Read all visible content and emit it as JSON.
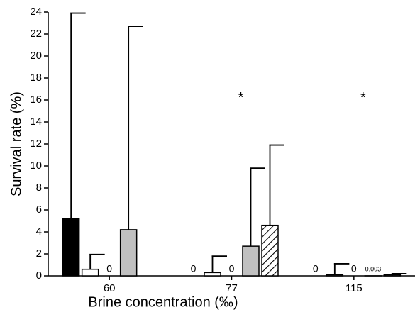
{
  "chart_data": {
    "type": "bar",
    "categories": [
      "60",
      "77",
      "115"
    ],
    "xlabel": "Brine concentration (‰)",
    "ylabel": "Survival rate (%)",
    "ylim": [
      0,
      24
    ],
    "yticks": [
      0,
      2,
      4,
      6,
      8,
      10,
      12,
      14,
      16,
      18,
      20,
      22,
      24
    ],
    "grid": false,
    "series": [
      {
        "color": "#000000",
        "values": [
          5.2,
          0,
          0
        ],
        "errors": [
          18.7,
          null,
          null
        ],
        "value_labels": [
          null,
          "0",
          "0"
        ]
      },
      {
        "color": "#ffffff",
        "values": [
          0.6,
          0.3,
          0.1
        ],
        "errors": [
          1.35,
          1.5,
          1.0
        ]
      },
      {
        "color": "#ffffff",
        "values": [
          0,
          0,
          0
        ],
        "value_labels": [
          "0",
          "0",
          "0"
        ]
      },
      {
        "color": "#c0c0c0",
        "values": [
          4.2,
          2.7,
          0.003
        ],
        "errors": [
          18.5,
          7.1,
          null
        ],
        "value_labels": [
          null,
          null,
          "0.003"
        ]
      },
      {
        "color": "#ffffff",
        "pattern": "hatch",
        "values": [
          null,
          4.6,
          0.1
        ],
        "errors": [
          null,
          7.3,
          0.1
        ]
      }
    ],
    "annotations": [
      {
        "text": "*",
        "category_index": 1,
        "y": 16.4
      },
      {
        "text": "*",
        "category_index": 2,
        "y": 16.4
      }
    ]
  }
}
